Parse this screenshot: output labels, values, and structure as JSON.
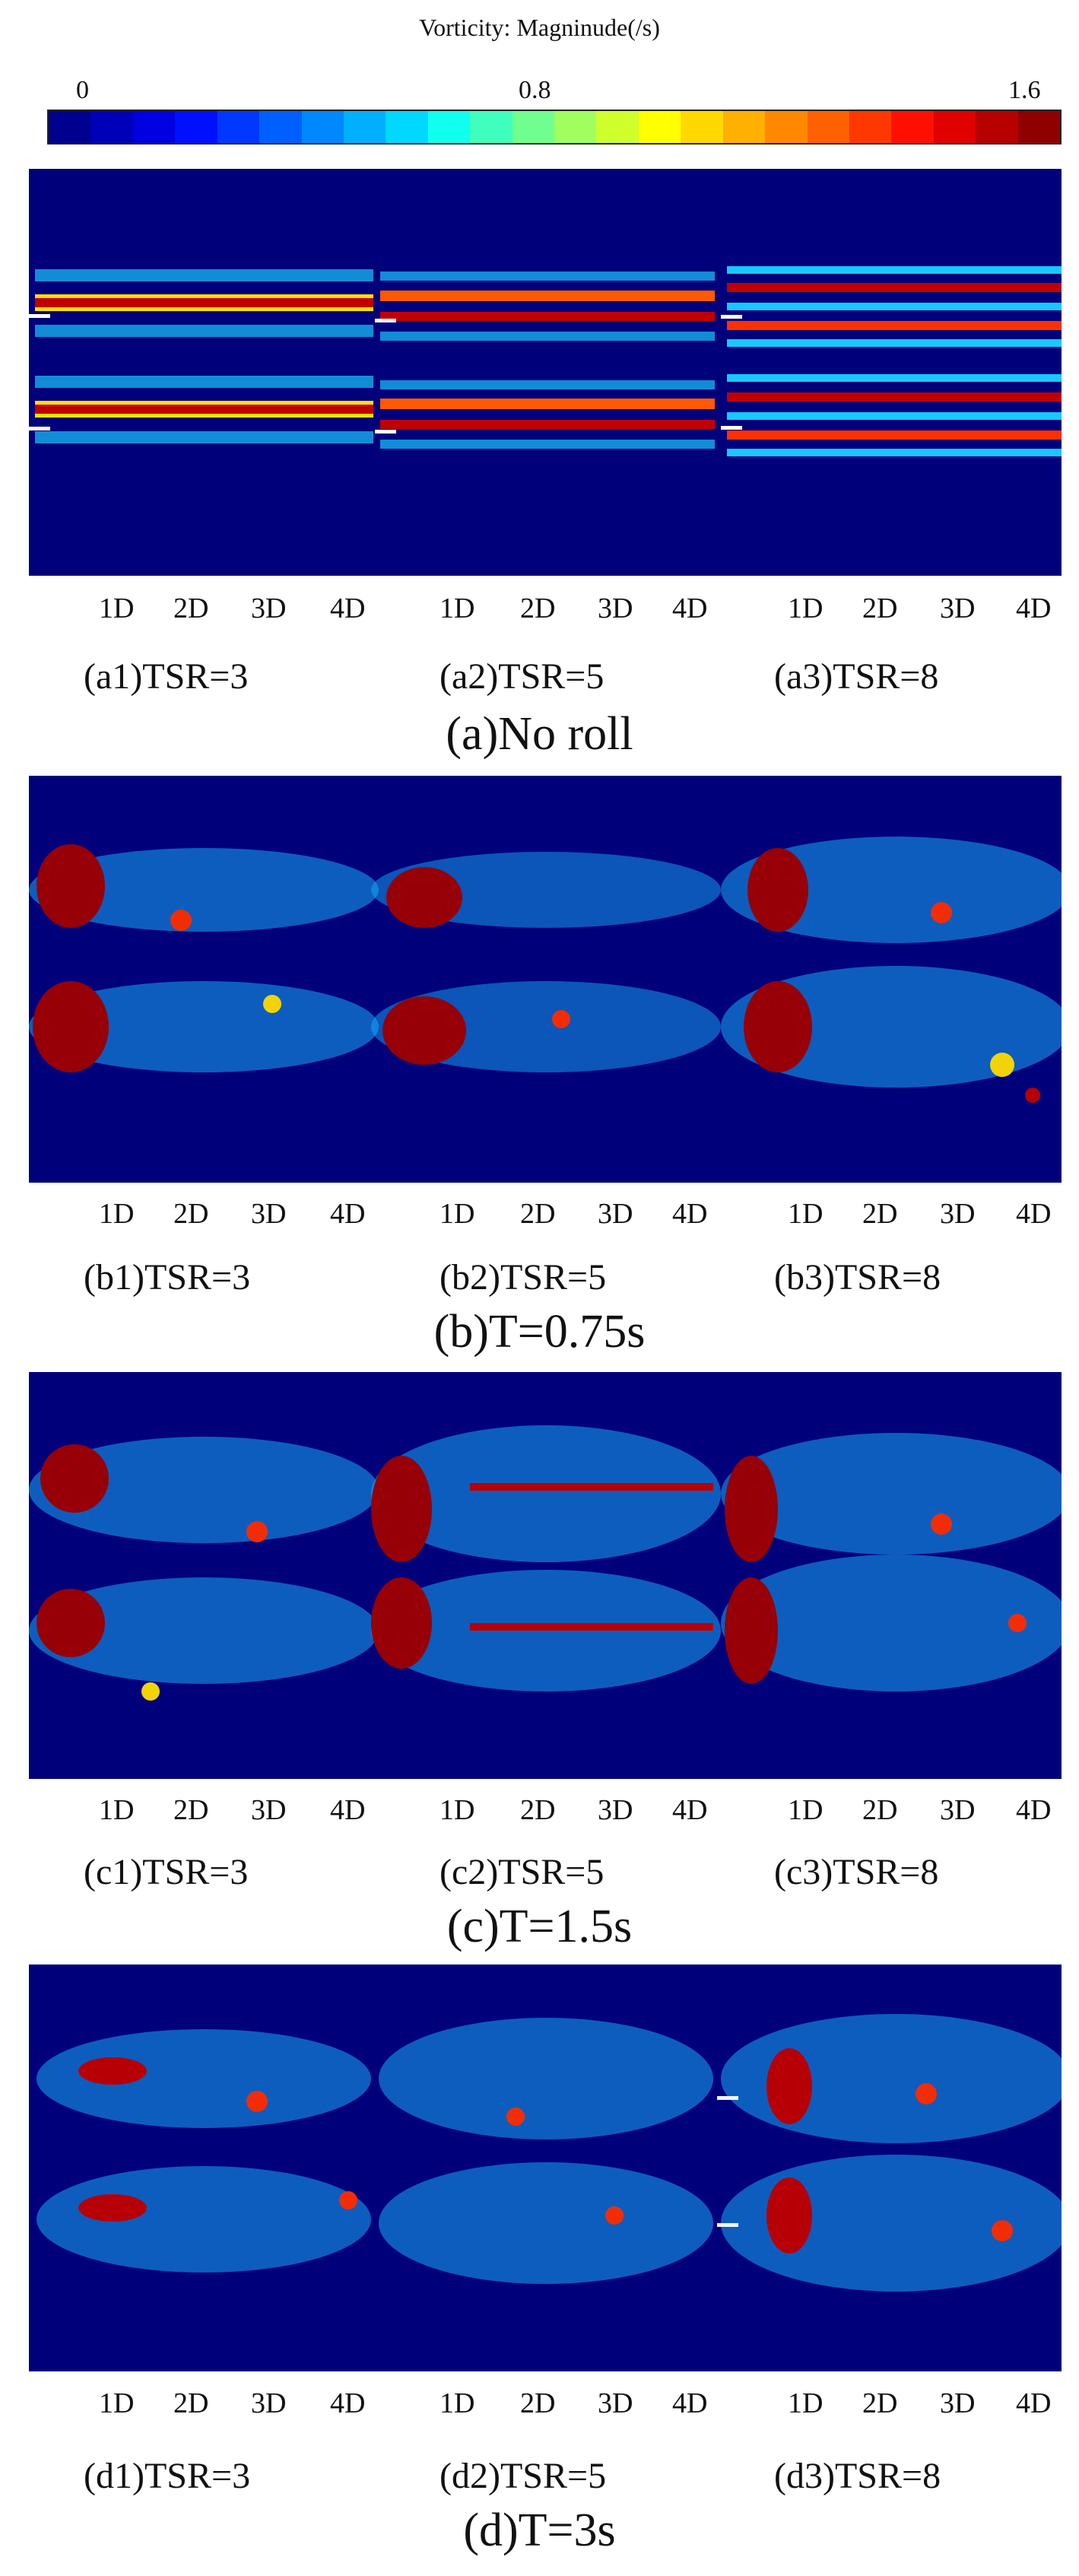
{
  "colorbar": {
    "title": "Vorticity: Magninude(/s)",
    "min_label": "0",
    "mid_label": "0.8",
    "max_label": "1.6",
    "colors": [
      "#00008f",
      "#0000b8",
      "#0000e0",
      "#0010ff",
      "#0038ff",
      "#0060ff",
      "#0088ff",
      "#00b0ff",
      "#00d8ff",
      "#10ffee",
      "#40ffbe",
      "#70ff8e",
      "#a0ff5e",
      "#d0ff2e",
      "#ffff00",
      "#ffd800",
      "#ffb000",
      "#ff8800",
      "#ff6000",
      "#ff3800",
      "#ff1000",
      "#e00000",
      "#b80000",
      "#8f0000"
    ]
  },
  "distance_labels": [
    "1D",
    "2D",
    "3D",
    "4D"
  ],
  "rows": [
    {
      "sublabels": [
        "(a1)TSR=3",
        "(a2)TSR=5",
        "(a3)TSR=8"
      ],
      "caption": "(a)No roll"
    },
    {
      "sublabels": [
        "(b1)TSR=3",
        "(b2)TSR=5",
        "(b3)TSR=8"
      ],
      "caption": "(b)T=0.75s"
    },
    {
      "sublabels": [
        "(c1)TSR=3",
        "(c2)TSR=5",
        "(c3)TSR=8"
      ],
      "caption": "(c)T=1.5s"
    },
    {
      "sublabels": [
        "(d1)TSR=3",
        "(d2)TSR=5",
        "(d3)TSR=8"
      ],
      "caption": "(d)T=3s"
    }
  ]
}
